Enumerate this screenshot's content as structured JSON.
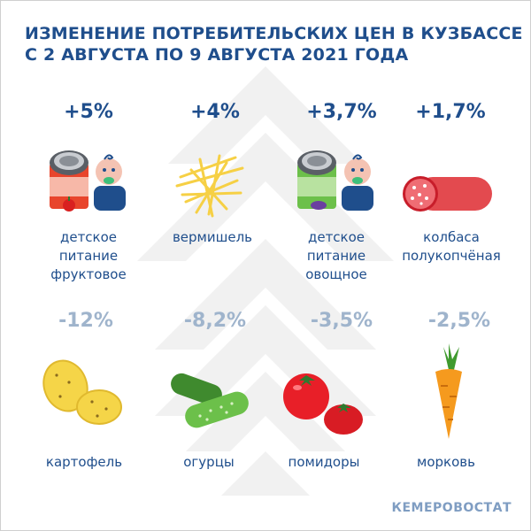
{
  "title": {
    "line1": "ИЗМЕНЕНИЕ ПОТРЕБИТЕЛЬСКИХ ЦЕН В КУЗБАССЕ",
    "line2": "С 2 АВГУСТА ПО 9 АВГУСТА  2021 ГОДА"
  },
  "increases": [
    {
      "change": "+5%",
      "label_lines": [
        "детское",
        "питание",
        "фруктовое"
      ],
      "icon": "baby-food-fruit-icon"
    },
    {
      "change": "+4%",
      "label_lines": [
        "вермишель"
      ],
      "icon": "vermicelli-icon"
    },
    {
      "change": "+3,7%",
      "label_lines": [
        "детское",
        "питание",
        "овощное"
      ],
      "icon": "baby-food-vegetable-icon"
    },
    {
      "change": "+1,7%",
      "label_lines": [
        "колбаса",
        "полукопчёная"
      ],
      "icon": "sausage-icon"
    }
  ],
  "decreases": [
    {
      "change": "-12%",
      "label_lines": [
        "картофель"
      ],
      "icon": "potato-icon"
    },
    {
      "change": "-8,2%",
      "label_lines": [
        "огурцы"
      ],
      "icon": "cucumber-icon"
    },
    {
      "change": "-3,5%",
      "label_lines": [
        "помидоры"
      ],
      "icon": "tomato-icon"
    },
    {
      "change": "-2,5%",
      "label_lines": [
        "морковь"
      ],
      "icon": "carrot-icon"
    }
  ],
  "colors": {
    "title": "#1f4e8c",
    "increase": "#1f4e8c",
    "decrease": "#9fb4cc",
    "source": "#7f9dc2"
  },
  "source": "КЕМЕРОВОСТАТ"
}
